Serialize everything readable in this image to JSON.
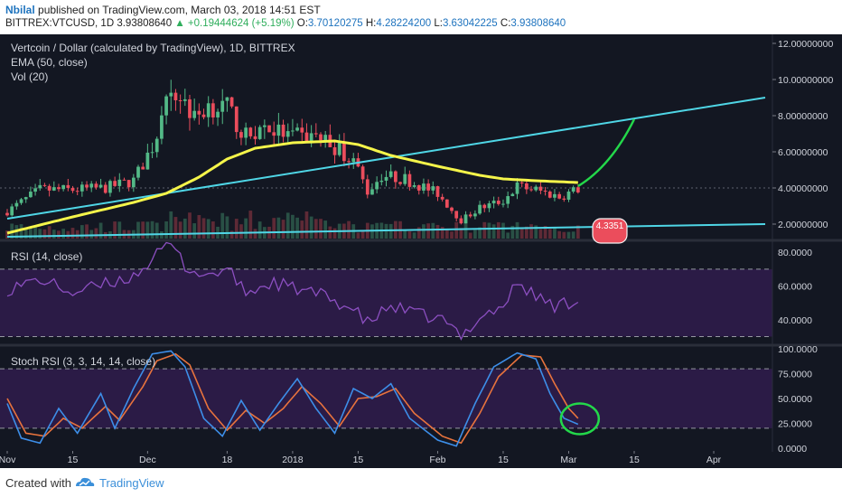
{
  "header": {
    "author": "Nbilal",
    "published": "published on TradingView.com, March 03, 2018 14:51 EST",
    "symbol": "BITTREX:VTCUSD, 1D",
    "last": "3.93808640",
    "arrow": "▲",
    "change": "+0.19444624 (+5.19%)",
    "o_label": "O:",
    "o_value": "3.70120275",
    "h_label": "H:",
    "h_value": "4.28224200",
    "l_label": "L:",
    "l_value": "3.63042225",
    "c_label": "C:",
    "c_value": "3.93808640"
  },
  "legend": {
    "title": "Vertcoin / Dollar (calculated by TradingView), 1D, BITTREX",
    "ema": "EMA (50, close)",
    "vol": "Vol (20)",
    "rsi": "RSI (14, close)",
    "stoch": "Stoch RSI (3, 3, 14, 14, close)"
  },
  "price_badge": "4.3351",
  "footer": {
    "created": "Created with",
    "brand": "TradingView",
    "logo_icon": "tradingview-cloud-icon"
  },
  "colors": {
    "background": "#131722",
    "bull": "#53b987",
    "bear": "#eb4d5c",
    "ema": "#f5f54a",
    "trendline": "#4fd6e6",
    "projection": "#23d84a",
    "rsi_line": "#8c4fc1",
    "rsi_fill": "#2b1b46",
    "stoch_k": "#3d8ee8",
    "stoch_d": "#e8733d",
    "circle": "#23d84a"
  },
  "chart_data": [
    {
      "type": "candlestick",
      "title": "Vertcoin / Dollar (calculated by TradingView), 1D, BITTREX",
      "ylim": [
        1.2,
        12.4
      ],
      "y_ticks": [
        "12.00000000",
        "10.00000000",
        "8.00000000",
        "6.00000000",
        "4.00000000",
        "2.00000000"
      ],
      "y_tick_values": [
        12,
        10,
        8,
        6,
        4,
        2
      ],
      "x_tick_labels": [
        "Nov",
        "15",
        "Dec",
        "18",
        "2018",
        "15",
        "Feb",
        "15",
        "Mar",
        "15",
        "Apr"
      ],
      "x_start": "2017-11-01",
      "x_end": "2018-04-12",
      "x_ticks": [
        "2017-11-01",
        "2017-11-15",
        "2017-12-01",
        "2017-12-18",
        "2018-01-01",
        "2018-01-15",
        "2018-02-01",
        "2018-02-15",
        "2018-03-01",
        "2018-03-15",
        "2018-04-01"
      ],
      "last_date": "2018-03-03",
      "close_anchors": [
        [
          "2017-11-01",
          2.7
        ],
        [
          "2017-11-08",
          3.9
        ],
        [
          "2017-11-15",
          3.9
        ],
        [
          "2017-11-22",
          4.0
        ],
        [
          "2017-11-28",
          4.4
        ],
        [
          "2017-12-02",
          6.3
        ],
        [
          "2017-12-05",
          8.5
        ],
        [
          "2017-12-08",
          9.2
        ],
        [
          "2017-12-11",
          7.8
        ],
        [
          "2017-12-14",
          8.6
        ],
        [
          "2017-12-18",
          8.4
        ],
        [
          "2017-12-22",
          6.8
        ],
        [
          "2017-12-26",
          7.4
        ],
        [
          "2018-01-01",
          6.8
        ],
        [
          "2018-01-06",
          6.9
        ],
        [
          "2018-01-10",
          6.3
        ],
        [
          "2018-01-14",
          5.6
        ],
        [
          "2018-01-17",
          3.8
        ],
        [
          "2018-01-20",
          4.7
        ],
        [
          "2018-01-25",
          4.5
        ],
        [
          "2018-02-01",
          3.7
        ],
        [
          "2018-02-06",
          2.2
        ],
        [
          "2018-02-10",
          2.9
        ],
        [
          "2018-02-15",
          3.3
        ],
        [
          "2018-02-18",
          4.1
        ],
        [
          "2018-02-22",
          3.9
        ],
        [
          "2018-02-27",
          3.5
        ],
        [
          "2018-03-03",
          3.94
        ]
      ],
      "ema_anchors": [
        [
          "2017-11-01",
          1.5
        ],
        [
          "2017-11-15",
          2.4
        ],
        [
          "2017-11-28",
          3.2
        ],
        [
          "2017-12-05",
          3.7
        ],
        [
          "2017-12-12",
          4.6
        ],
        [
          "2017-12-18",
          5.6
        ],
        [
          "2017-12-24",
          6.2
        ],
        [
          "2018-01-01",
          6.5
        ],
        [
          "2018-01-10",
          6.6
        ],
        [
          "2018-01-15",
          6.4
        ],
        [
          "2018-01-22",
          5.8
        ],
        [
          "2018-02-01",
          5.2
        ],
        [
          "2018-02-10",
          4.7
        ],
        [
          "2018-02-15",
          4.5
        ],
        [
          "2018-02-22",
          4.4
        ],
        [
          "2018-03-03",
          4.3
        ]
      ],
      "support_line": [
        [
          "2017-11-01",
          1.3
        ],
        [
          "2018-04-12",
          2.0
        ]
      ],
      "rising_trendline": [
        [
          "2017-11-01",
          2.3
        ],
        [
          "2018-04-12",
          9.0
        ]
      ],
      "projection": [
        [
          "2018-03-03",
          4.1
        ],
        [
          "2018-03-10",
          5.2
        ],
        [
          "2018-03-15",
          7.8
        ]
      ]
    },
    {
      "type": "line",
      "name": "RSI (14, close)",
      "ylim": [
        26,
        86
      ],
      "y_ticks": [
        "80.0000",
        "60.0000",
        "40.0000"
      ],
      "y_tick_values": [
        80,
        60,
        40
      ],
      "bands": [
        70,
        30
      ],
      "anchors": [
        [
          "2017-11-01",
          58
        ],
        [
          "2017-11-08",
          64
        ],
        [
          "2017-11-15",
          56
        ],
        [
          "2017-11-22",
          61
        ],
        [
          "2017-11-28",
          66
        ],
        [
          "2017-12-02",
          76
        ],
        [
          "2017-12-06",
          85
        ],
        [
          "2017-12-09",
          72
        ],
        [
          "2017-12-13",
          66
        ],
        [
          "2017-12-18",
          70
        ],
        [
          "2017-12-22",
          56
        ],
        [
          "2017-12-28",
          62
        ],
        [
          "2018-01-02",
          58
        ],
        [
          "2018-01-08",
          54
        ],
        [
          "2018-01-14",
          46
        ],
        [
          "2018-01-17",
          38
        ],
        [
          "2018-01-22",
          48
        ],
        [
          "2018-01-28",
          43
        ],
        [
          "2018-02-02",
          40
        ],
        [
          "2018-02-06",
          30
        ],
        [
          "2018-02-10",
          42
        ],
        [
          "2018-02-15",
          48
        ],
        [
          "2018-02-18",
          62
        ],
        [
          "2018-02-22",
          54
        ],
        [
          "2018-02-26",
          48
        ],
        [
          "2018-03-03",
          52
        ]
      ]
    },
    {
      "type": "line",
      "name": "Stoch RSI (3, 3, 14, 14, close)",
      "ylim": [
        -2,
        102
      ],
      "y_ticks": [
        "100.0000",
        "75.0000",
        "50.0000",
        "25.0000",
        "0.0000"
      ],
      "y_tick_values": [
        100,
        75,
        50,
        25,
        0
      ],
      "bands": [
        80,
        20
      ],
      "k_anchors": [
        [
          "2017-11-01",
          45
        ],
        [
          "2017-11-04",
          10
        ],
        [
          "2017-11-08",
          5
        ],
        [
          "2017-11-12",
          40
        ],
        [
          "2017-11-16",
          15
        ],
        [
          "2017-11-21",
          55
        ],
        [
          "2017-11-24",
          20
        ],
        [
          "2017-11-28",
          60
        ],
        [
          "2017-12-02",
          95
        ],
        [
          "2017-12-06",
          98
        ],
        [
          "2017-12-09",
          82
        ],
        [
          "2017-12-13",
          30
        ],
        [
          "2017-12-17",
          12
        ],
        [
          "2017-12-21",
          48
        ],
        [
          "2017-12-25",
          18
        ],
        [
          "2017-12-29",
          45
        ],
        [
          "2018-01-02",
          70
        ],
        [
          "2018-01-06",
          40
        ],
        [
          "2018-01-10",
          15
        ],
        [
          "2018-01-14",
          60
        ],
        [
          "2018-01-18",
          50
        ],
        [
          "2018-01-22",
          65
        ],
        [
          "2018-01-26",
          30
        ],
        [
          "2018-02-01",
          8
        ],
        [
          "2018-02-05",
          2
        ],
        [
          "2018-02-09",
          45
        ],
        [
          "2018-02-13",
          82
        ],
        [
          "2018-02-18",
          96
        ],
        [
          "2018-02-22",
          90
        ],
        [
          "2018-02-25",
          55
        ],
        [
          "2018-02-28",
          30
        ],
        [
          "2018-03-03",
          24
        ]
      ],
      "d_anchors": [
        [
          "2017-11-01",
          50
        ],
        [
          "2017-11-05",
          15
        ],
        [
          "2017-11-09",
          12
        ],
        [
          "2017-11-13",
          30
        ],
        [
          "2017-11-17",
          20
        ],
        [
          "2017-11-22",
          42
        ],
        [
          "2017-11-25",
          28
        ],
        [
          "2017-11-30",
          62
        ],
        [
          "2017-12-03",
          88
        ],
        [
          "2017-12-07",
          95
        ],
        [
          "2017-12-10",
          84
        ],
        [
          "2017-12-14",
          40
        ],
        [
          "2017-12-18",
          18
        ],
        [
          "2017-12-22",
          38
        ],
        [
          "2017-12-26",
          25
        ],
        [
          "2017-12-30",
          40
        ],
        [
          "2018-01-03",
          62
        ],
        [
          "2018-01-07",
          45
        ],
        [
          "2018-01-11",
          22
        ],
        [
          "2018-01-15",
          50
        ],
        [
          "2018-01-19",
          52
        ],
        [
          "2018-01-23",
          60
        ],
        [
          "2018-01-27",
          35
        ],
        [
          "2018-02-02",
          12
        ],
        [
          "2018-02-06",
          5
        ],
        [
          "2018-02-10",
          35
        ],
        [
          "2018-02-14",
          72
        ],
        [
          "2018-02-19",
          94
        ],
        [
          "2018-02-23",
          92
        ],
        [
          "2018-02-26",
          65
        ],
        [
          "2018-03-01",
          40
        ],
        [
          "2018-03-03",
          30
        ]
      ]
    }
  ]
}
